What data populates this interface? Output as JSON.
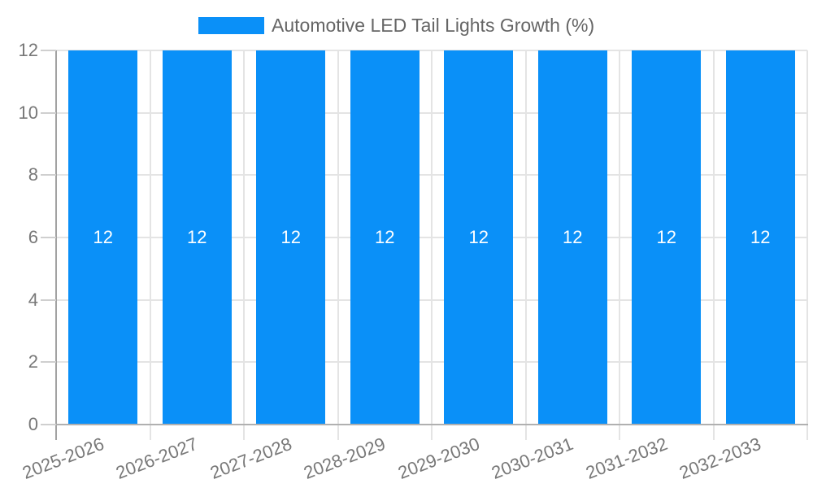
{
  "chart_data": {
    "type": "bar",
    "title": "Automotive LED Tail Lights Growth (%)",
    "categories": [
      "2025-2026",
      "2026-2027",
      "2027-2028",
      "2028-2029",
      "2029-2030",
      "2030-2031",
      "2031-2032",
      "2032-2033"
    ],
    "values": [
      12,
      12,
      12,
      12,
      12,
      12,
      12,
      12
    ],
    "bar_labels": [
      "12",
      "12",
      "12",
      "12",
      "12",
      "12",
      "12",
      "12"
    ],
    "xlabel": "",
    "ylabel": "",
    "ylim": [
      0,
      12
    ],
    "yticks": [
      0,
      2,
      4,
      6,
      8,
      10,
      12
    ],
    "grid": true,
    "legend_position": "top-center",
    "bar_color": "#0a90f8",
    "bar_label_color": "#ffffff"
  },
  "legend": {
    "label": "Automotive LED Tail Lights Growth (%)",
    "swatch_color": "#0a90f8"
  },
  "colors": {
    "bar": "#0a90f8",
    "bar_label": "#ffffff",
    "grid": "#e4e4e4",
    "axis_y": "#a2a2a2",
    "axis_x": "#b0b0b0",
    "tick": "#cfcfcf",
    "tick_label": "#787878",
    "title_text": "#666666",
    "background": "#ffffff"
  }
}
